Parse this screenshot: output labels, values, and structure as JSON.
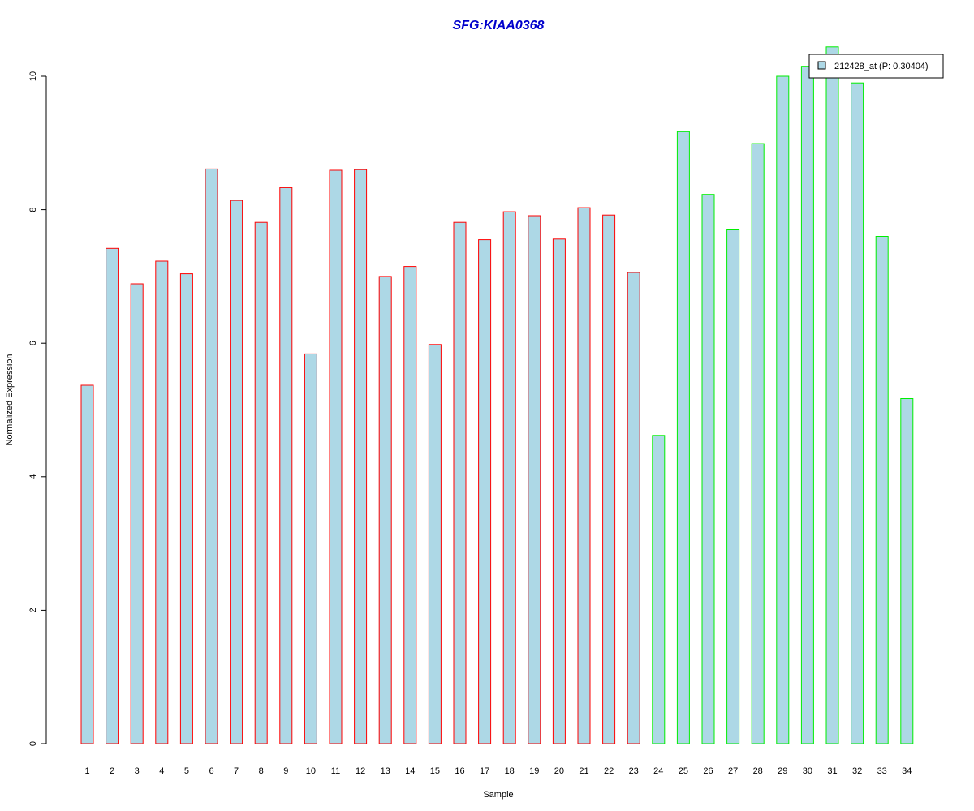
{
  "chart_data": {
    "type": "bar",
    "title": "SFG:KIAA0368",
    "xlabel": "Sample",
    "ylabel": "Normalized Expression",
    "ylim": [
      0,
      10.5
    ],
    "yticks": [
      0,
      2,
      4,
      6,
      8,
      10
    ],
    "grid": false,
    "legend_placement": "top-right",
    "colors": {
      "title": "#0000cc",
      "bar_fill": "#add8e6",
      "group1_border": "#ff0000",
      "group2_border": "#00ee00",
      "axis": "#000000"
    },
    "categories": [
      "1",
      "2",
      "3",
      "4",
      "5",
      "6",
      "7",
      "8",
      "9",
      "10",
      "11",
      "12",
      "13",
      "14",
      "15",
      "16",
      "17",
      "18",
      "19",
      "20",
      "21",
      "22",
      "23",
      "24",
      "25",
      "26",
      "27",
      "28",
      "29",
      "30",
      "31",
      "32",
      "33",
      "34"
    ],
    "series": [
      {
        "name": "212428_at (P: 0.30404)",
        "values": [
          5.37,
          7.42,
          6.89,
          7.23,
          7.04,
          8.61,
          8.14,
          7.81,
          8.33,
          5.84,
          8.59,
          8.6,
          7.0,
          7.15,
          5.98,
          7.81,
          7.55,
          7.97,
          7.91,
          7.56,
          8.03,
          7.92,
          7.06,
          4.62,
          9.17,
          8.23,
          7.71,
          8.99,
          10.0,
          10.15,
          10.44,
          9.9,
          7.6,
          5.17
        ],
        "group": [
          1,
          1,
          1,
          1,
          1,
          1,
          1,
          1,
          1,
          1,
          1,
          1,
          1,
          1,
          1,
          1,
          1,
          1,
          1,
          1,
          1,
          1,
          1,
          2,
          2,
          2,
          2,
          2,
          2,
          2,
          2,
          2,
          2,
          2
        ]
      }
    ]
  }
}
